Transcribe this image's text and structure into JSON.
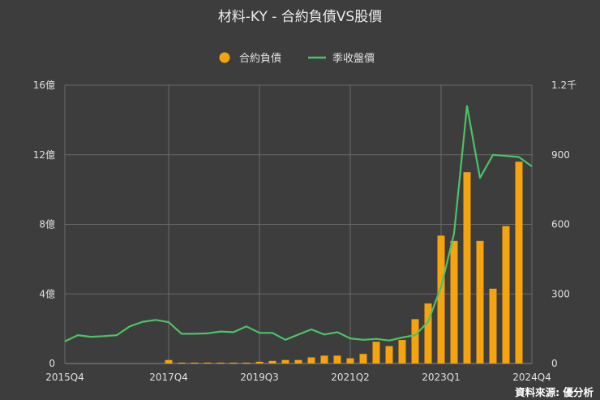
{
  "colors": {
    "background": "#3d3d3d",
    "bar": "#f5a30f",
    "line": "#4cc268",
    "grid": "#6a6a6a"
  },
  "chart_data": {
    "type": "bar+line",
    "title": "材料-KY - 合約負債VS股價",
    "legend": {
      "placement": "top-center"
    },
    "grid": true,
    "x_tick_labels": [
      "2015Q4",
      "2017Q4",
      "2019Q3",
      "2021Q2",
      "2023Q1",
      "2024Q4"
    ],
    "x_tick_indices": [
      0,
      8,
      15,
      22,
      29,
      36
    ],
    "categories": [
      "2015Q4",
      "2016Q1",
      "2016Q2",
      "2016Q3",
      "2016Q4",
      "2017Q1",
      "2017Q2",
      "2017Q3",
      "2017Q4",
      "2018Q1",
      "2018Q2",
      "2018Q3",
      "2018Q4",
      "2019Q1",
      "2019Q2",
      "2019Q3",
      "2019Q4",
      "2020Q1",
      "2020Q2",
      "2020Q3",
      "2020Q4",
      "2021Q1",
      "2021Q2",
      "2021Q3",
      "2021Q4",
      "2022Q1",
      "2022Q2",
      "2022Q3",
      "2022Q4",
      "2023Q1",
      "2023Q2",
      "2023Q3",
      "2023Q4",
      "2024Q1",
      "2024Q2",
      "2024Q3",
      "2024Q4"
    ],
    "y_left": {
      "ylim": [
        0,
        16
      ],
      "ticks": [
        0,
        4,
        8,
        12,
        16
      ],
      "tick_labels": [
        "0",
        "4億",
        "8億",
        "12億",
        "16億"
      ]
    },
    "y_right": {
      "ylim": [
        0,
        1200
      ],
      "ticks": [
        0,
        300,
        600,
        900,
        1200
      ],
      "tick_labels": [
        "0",
        "300",
        "600",
        "900",
        "1.2千"
      ]
    },
    "series": [
      {
        "name": "合約負債",
        "type": "bar",
        "axis": "left",
        "values": [
          0,
          0,
          0,
          0,
          0,
          0,
          0,
          0,
          0.2,
          0.05,
          0.05,
          0.05,
          0.05,
          0.05,
          0.05,
          0.1,
          0.15,
          0.2,
          0.2,
          0.35,
          0.45,
          0.45,
          0.3,
          0.55,
          1.25,
          1.0,
          1.35,
          2.55,
          3.45,
          7.35,
          7.05,
          11.0,
          7.05,
          4.3,
          7.9,
          11.6,
          0
        ]
      },
      {
        "name": "季收盤價",
        "type": "line",
        "axis": "right",
        "values": [
          95,
          122,
          115,
          118,
          122,
          160,
          180,
          188,
          178,
          128,
          128,
          130,
          138,
          135,
          160,
          132,
          132,
          102,
          125,
          147,
          125,
          135,
          108,
          102,
          106,
          99,
          112,
          122,
          180,
          330,
          560,
          1110,
          800,
          900,
          895,
          890,
          850
        ]
      }
    ]
  },
  "source": {
    "label": "資料來源: 優分析"
  }
}
